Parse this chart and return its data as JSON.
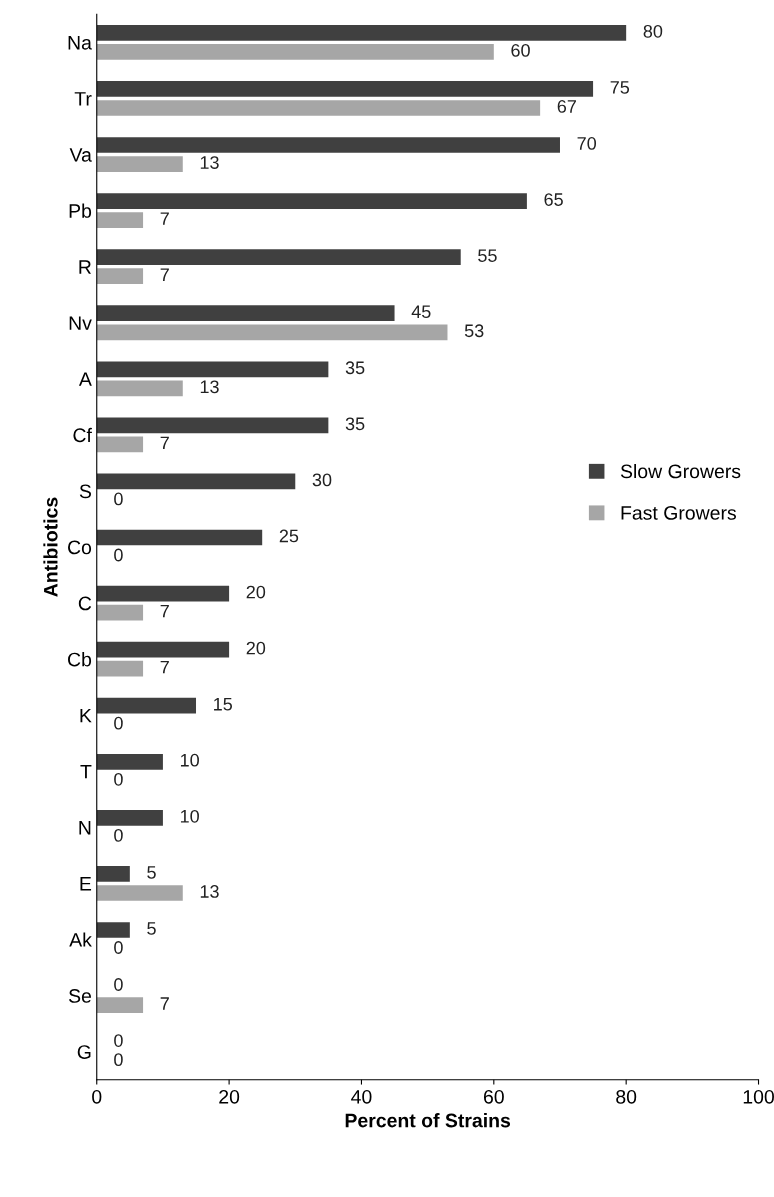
{
  "chart_data": {
    "type": "bar",
    "orientation": "horizontal",
    "xlabel": "Percent of Strains",
    "ylabel": "Antibiotics",
    "categories": [
      "Na",
      "Tr",
      "Va",
      "Pb",
      "R",
      "Nv",
      "A",
      "Cf",
      "S",
      "Co",
      "C",
      "Cb",
      "K",
      "T",
      "N",
      "E",
      "Ak",
      "Se",
      "G"
    ],
    "series": [
      {
        "name": "Slow Growers",
        "color": "#404040",
        "values": [
          80,
          75,
          70,
          65,
          55,
          45,
          35,
          35,
          30,
          25,
          20,
          20,
          15,
          10,
          10,
          5,
          5,
          0,
          0
        ]
      },
      {
        "name": "Fast Growers",
        "color": "#a6a6a6",
        "values": [
          60,
          67,
          13,
          7,
          7,
          53,
          13,
          7,
          0,
          0,
          7,
          7,
          0,
          0,
          0,
          13,
          0,
          7,
          0
        ]
      }
    ],
    "xlim": [
      0,
      100
    ],
    "xticks": [
      0,
      20,
      40,
      60,
      80,
      100
    ],
    "data_labels": true,
    "legend": "right",
    "grid": false
  }
}
